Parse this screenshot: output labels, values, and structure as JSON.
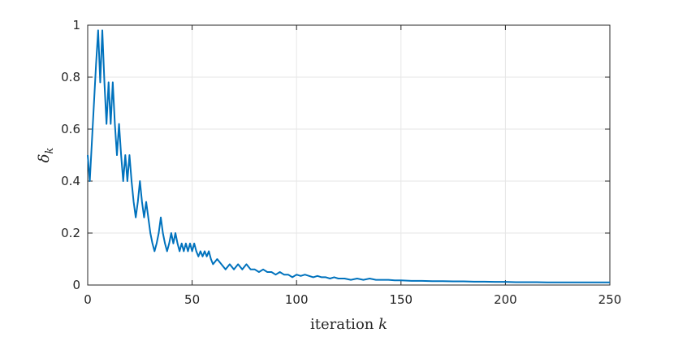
{
  "chart_data": {
    "type": "line",
    "xlabel_text": "iteration ",
    "xlabel_var": "k",
    "ylabel_symbol": "δ",
    "ylabel_sub": "k",
    "xlim": [
      0,
      250
    ],
    "ylim": [
      0,
      1
    ],
    "xticks": [
      "0",
      "50",
      "100",
      "150",
      "200",
      "250"
    ],
    "yticks": [
      "0",
      "0.2",
      "0.4",
      "0.6",
      "0.8",
      "1"
    ],
    "xtick_values": [
      0,
      50,
      100,
      150,
      200,
      250
    ],
    "ytick_values": [
      0,
      0.2,
      0.4,
      0.6,
      0.8,
      1
    ],
    "grid": true,
    "series": [
      {
        "color": "#0072BD",
        "x": [
          0,
          1,
          2,
          3,
          4,
          5,
          6,
          7,
          8,
          9,
          10,
          11,
          12,
          13,
          14,
          15,
          16,
          17,
          18,
          19,
          20,
          21,
          22,
          23,
          24,
          25,
          26,
          27,
          28,
          29,
          30,
          31,
          32,
          33,
          34,
          35,
          36,
          37,
          38,
          39,
          40,
          41,
          42,
          43,
          44,
          45,
          46,
          47,
          48,
          49,
          50,
          51,
          52,
          53,
          54,
          55,
          56,
          57,
          58,
          59,
          60,
          62,
          64,
          66,
          68,
          70,
          72,
          74,
          76,
          78,
          80,
          82,
          84,
          86,
          88,
          90,
          92,
          94,
          96,
          98,
          100,
          102,
          104,
          106,
          108,
          110,
          112,
          114,
          116,
          118,
          120,
          123,
          126,
          129,
          132,
          135,
          138,
          141,
          144,
          147,
          150,
          155,
          160,
          165,
          170,
          175,
          180,
          185,
          190,
          195,
          200,
          205,
          210,
          215,
          220,
          225,
          230,
          235,
          240,
          245,
          250
        ],
        "y": [
          0.5,
          0.4,
          0.55,
          0.7,
          0.85,
          0.98,
          0.78,
          0.98,
          0.78,
          0.62,
          0.78,
          0.62,
          0.78,
          0.62,
          0.5,
          0.62,
          0.5,
          0.4,
          0.5,
          0.4,
          0.5,
          0.4,
          0.32,
          0.26,
          0.32,
          0.4,
          0.32,
          0.26,
          0.32,
          0.26,
          0.2,
          0.16,
          0.13,
          0.16,
          0.2,
          0.26,
          0.2,
          0.16,
          0.13,
          0.16,
          0.2,
          0.16,
          0.2,
          0.16,
          0.13,
          0.16,
          0.13,
          0.16,
          0.13,
          0.16,
          0.13,
          0.16,
          0.13,
          0.11,
          0.13,
          0.11,
          0.13,
          0.11,
          0.13,
          0.1,
          0.08,
          0.1,
          0.08,
          0.06,
          0.08,
          0.06,
          0.08,
          0.06,
          0.08,
          0.06,
          0.06,
          0.05,
          0.06,
          0.05,
          0.05,
          0.04,
          0.05,
          0.04,
          0.04,
          0.03,
          0.04,
          0.035,
          0.04,
          0.035,
          0.03,
          0.035,
          0.03,
          0.03,
          0.025,
          0.03,
          0.025,
          0.025,
          0.02,
          0.025,
          0.02,
          0.025,
          0.02,
          0.02,
          0.02,
          0.018,
          0.018,
          0.016,
          0.016,
          0.015,
          0.015,
          0.014,
          0.014,
          0.013,
          0.013,
          0.012,
          0.012,
          0.011,
          0.011,
          0.011,
          0.01,
          0.01,
          0.01,
          0.01,
          0.01,
          0.01,
          0.01
        ]
      }
    ]
  }
}
